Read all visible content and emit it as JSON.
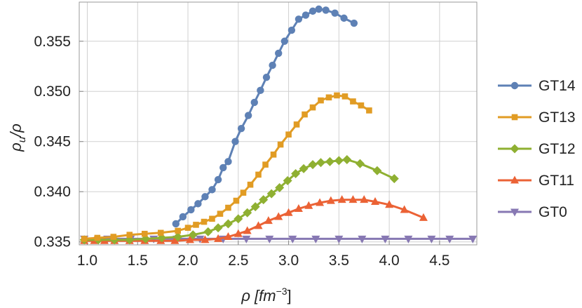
{
  "chart_data": {
    "type": "line",
    "title": "",
    "xlabel_main": "ρ [fm",
    "xlabel_sup": "−3",
    "xlabel_end": "]",
    "ylabel_main": "ρ",
    "ylabel_sub": "u",
    "ylabel_end": "/ρ",
    "xlim": [
      0.92,
      4.87
    ],
    "ylim": [
      0.3347,
      0.3589
    ],
    "grid": true,
    "legend_position": "right",
    "x_ticks": [
      "1.0",
      "1.5",
      "2.0",
      "2.5",
      "3.0",
      "3.5",
      "4.0",
      "4.5"
    ],
    "x_tick_values": [
      1.0,
      1.5,
      2.0,
      2.5,
      3.0,
      3.5,
      4.0,
      4.5
    ],
    "y_ticks": [
      "0.335",
      "0.340",
      "0.345",
      "0.350",
      "0.355"
    ],
    "y_tick_values": [
      0.335,
      0.34,
      0.345,
      0.35,
      0.355
    ],
    "series": [
      {
        "name": "GT14",
        "color": "#5e81b5",
        "marker": "circle",
        "x": [
          1.88,
          1.95,
          2.03,
          2.1,
          2.17,
          2.24,
          2.3,
          2.35,
          2.4,
          2.47,
          2.53,
          2.6,
          2.66,
          2.72,
          2.78,
          2.84,
          2.9,
          2.96,
          3.03,
          3.1,
          3.17,
          3.24,
          3.3,
          3.37,
          3.46,
          3.55,
          3.65
        ],
        "y": [
          0.3368,
          0.3375,
          0.3382,
          0.3388,
          0.3395,
          0.3402,
          0.3412,
          0.3424,
          0.343,
          0.345,
          0.3463,
          0.3476,
          0.3489,
          0.3501,
          0.3514,
          0.3526,
          0.3538,
          0.355,
          0.3561,
          0.3572,
          0.3576,
          0.358,
          0.3582,
          0.3581,
          0.3578,
          0.3573,
          0.3568
        ]
      },
      {
        "name": "GT13",
        "color": "#e19c24",
        "marker": "square",
        "x": [
          0.97,
          1.1,
          1.26,
          1.42,
          1.57,
          1.73,
          1.9,
          2.0,
          2.08,
          2.16,
          2.24,
          2.32,
          2.4,
          2.48,
          2.55,
          2.62,
          2.7,
          2.77,
          2.85,
          2.92,
          3.0,
          3.08,
          3.16,
          3.24,
          3.32,
          3.4,
          3.48,
          3.56,
          3.64,
          3.72,
          3.8
        ],
        "y": [
          0.3353,
          0.3354,
          0.3355,
          0.3357,
          0.3358,
          0.3359,
          0.3361,
          0.3364,
          0.3367,
          0.337,
          0.3373,
          0.3378,
          0.3384,
          0.3391,
          0.3399,
          0.3407,
          0.3417,
          0.3427,
          0.3437,
          0.3447,
          0.3457,
          0.3467,
          0.3477,
          0.3484,
          0.3491,
          0.3494,
          0.3496,
          0.3495,
          0.349,
          0.3486,
          0.3481
        ]
      },
      {
        "name": "GT12",
        "color": "#8fb032",
        "marker": "diamond",
        "x": [
          0.97,
          1.11,
          1.27,
          1.42,
          1.58,
          1.74,
          1.9,
          2.05,
          2.2,
          2.3,
          2.4,
          2.5,
          2.59,
          2.67,
          2.75,
          2.83,
          2.91,
          2.99,
          3.07,
          3.15,
          3.24,
          3.32,
          3.41,
          3.5,
          3.58,
          3.71,
          3.88,
          4.05
        ],
        "y": [
          0.3352,
          0.3352,
          0.3352,
          0.3352,
          0.3353,
          0.3354,
          0.3355,
          0.3357,
          0.336,
          0.3364,
          0.3368,
          0.3373,
          0.3379,
          0.3385,
          0.3392,
          0.3398,
          0.3404,
          0.3411,
          0.3418,
          0.3423,
          0.3427,
          0.3429,
          0.343,
          0.3431,
          0.3432,
          0.3428,
          0.3421,
          0.3413
        ]
      },
      {
        "name": "GT11",
        "color": "#eb6235",
        "marker": "triangle-up",
        "x": [
          0.97,
          1.07,
          1.17,
          1.27,
          1.42,
          1.57,
          1.73,
          1.87,
          2.02,
          2.17,
          2.3,
          2.4,
          2.5,
          2.59,
          2.7,
          2.8,
          2.9,
          3.0,
          3.1,
          3.2,
          3.31,
          3.42,
          3.53,
          3.64,
          3.75,
          3.86,
          4.0,
          4.15,
          4.34
        ],
        "y": [
          0.3351,
          0.3351,
          0.3351,
          0.3351,
          0.3351,
          0.3351,
          0.3351,
          0.3351,
          0.3352,
          0.3352,
          0.3353,
          0.3355,
          0.3358,
          0.3361,
          0.3366,
          0.3371,
          0.3375,
          0.3379,
          0.3383,
          0.3386,
          0.3389,
          0.3391,
          0.3392,
          0.3392,
          0.3392,
          0.339,
          0.3387,
          0.3382,
          0.3374
        ]
      },
      {
        "name": "GT0",
        "color": "#8778b3",
        "marker": "triangle-down",
        "x": [
          0.97,
          1.2,
          1.43,
          1.66,
          1.89,
          2.12,
          2.35,
          2.58,
          2.81,
          3.04,
          3.27,
          3.5,
          3.73,
          3.96,
          4.19,
          4.42,
          4.6,
          4.83
        ],
        "y": [
          0.3353,
          0.3353,
          0.3353,
          0.3353,
          0.3353,
          0.3353,
          0.3353,
          0.3353,
          0.3353,
          0.3353,
          0.3353,
          0.3353,
          0.3353,
          0.3353,
          0.3353,
          0.3353,
          0.3353,
          0.3353
        ]
      }
    ]
  }
}
